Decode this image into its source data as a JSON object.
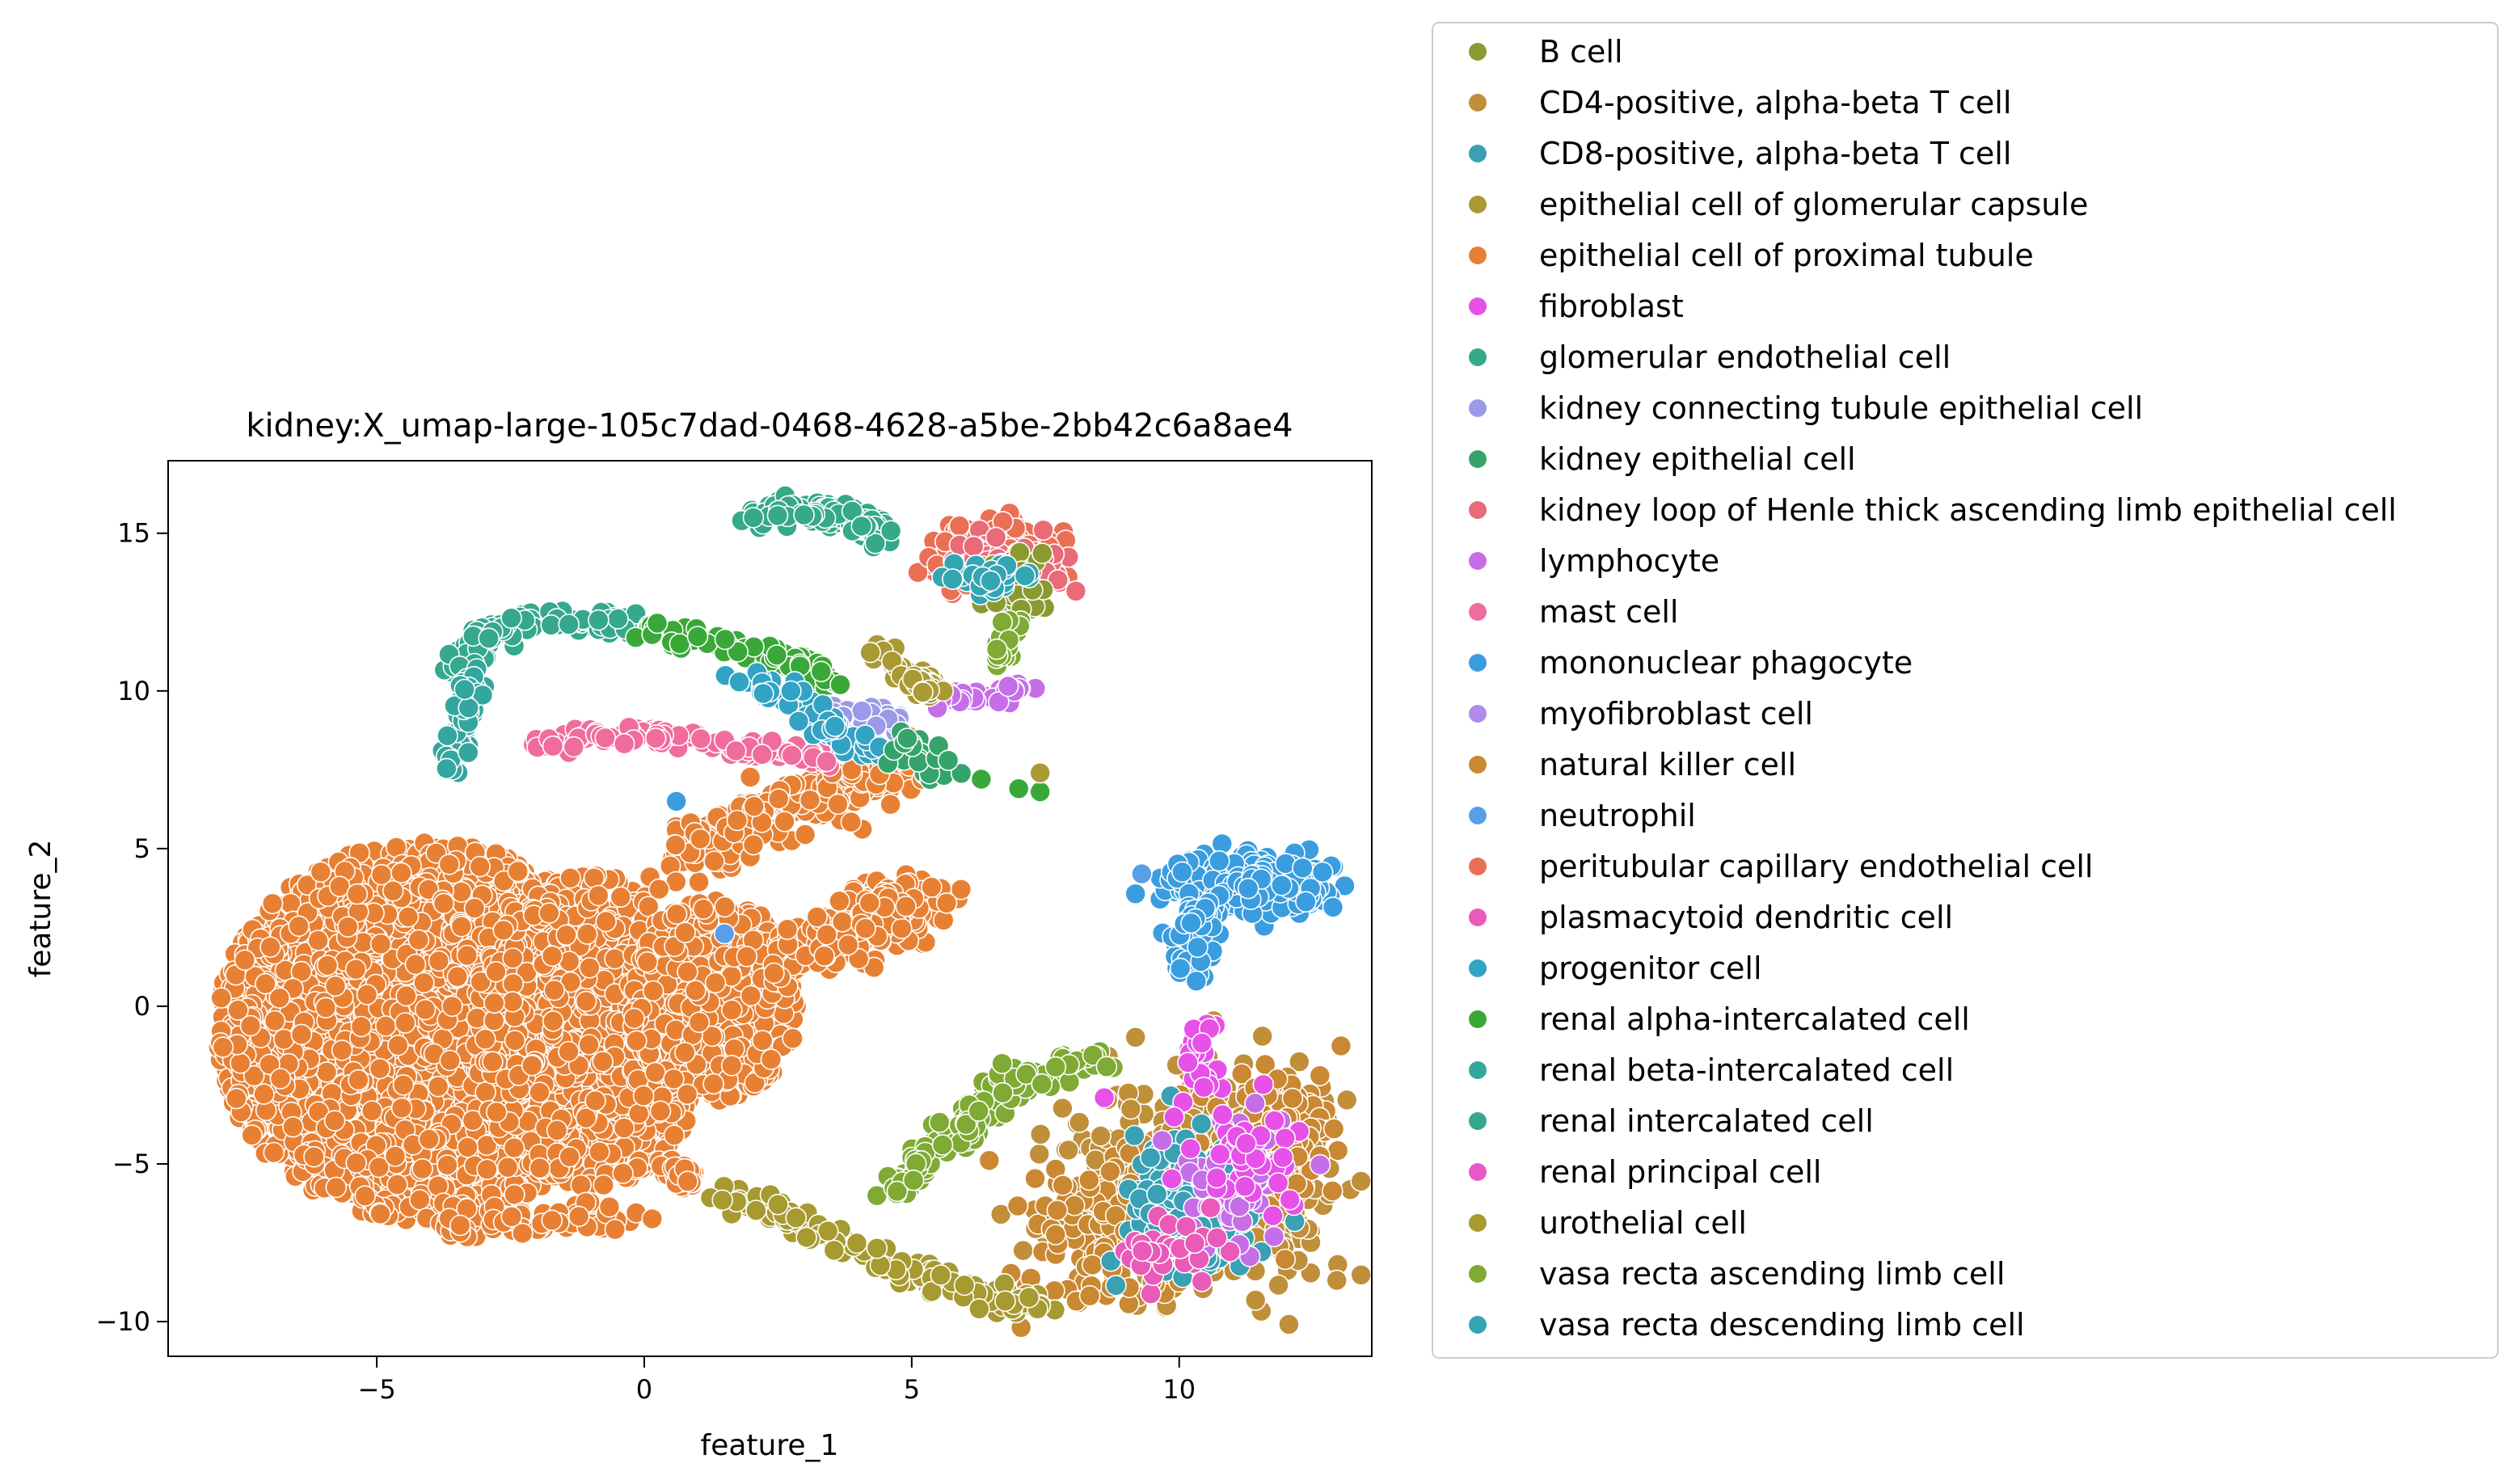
{
  "chart_data": {
    "type": "scatter",
    "title": "kidney:X_umap-large-105c7dad-0468-4628-a5be-2bb42c6a8ae4",
    "xlabel": "feature_1",
    "ylabel": "feature_2",
    "xlim": [
      -8.9,
      13.6
    ],
    "ylim": [
      -11.1,
      17.3
    ],
    "xticks": [
      -5,
      0,
      5,
      10
    ],
    "yticks": [
      -10,
      -5,
      0,
      5,
      10,
      15
    ],
    "xtick_labels": [
      "−5",
      "0",
      "5",
      "10"
    ],
    "ytick_labels": [
      "−10",
      "−5",
      "0",
      "5",
      "10",
      "15"
    ],
    "grid": false,
    "legend_position": "outside-right",
    "series": [
      {
        "name": "B cell",
        "color": "#8a9a31"
      },
      {
        "name": "CD4-positive, alpha-beta T cell",
        "color": "#bf8f3a"
      },
      {
        "name": "CD8-positive, alpha-beta T cell",
        "color": "#3aa0b3"
      },
      {
        "name": "epithelial cell of glomerular capsule",
        "color": "#a99a33"
      },
      {
        "name": "epithelial cell of proximal tubule",
        "color": "#e88033"
      },
      {
        "name": "fibroblast",
        "color": "#e751e8"
      },
      {
        "name": "glomerular endothelial cell",
        "color": "#35a98a"
      },
      {
        "name": "kidney connecting tubule epithelial cell",
        "color": "#9b9ae8"
      },
      {
        "name": "kidney epithelial cell",
        "color": "#34a46b"
      },
      {
        "name": "kidney loop of Henle thick ascending limb epithelial cell",
        "color": "#ea6b78"
      },
      {
        "name": "lymphocyte",
        "color": "#c56ee8"
      },
      {
        "name": "mast cell",
        "color": "#f06c9c"
      },
      {
        "name": "mononuclear phagocyte",
        "color": "#3a9ddf"
      },
      {
        "name": "myofibroblast cell",
        "color": "#b08ce8"
      },
      {
        "name": "natural killer cell",
        "color": "#c98831"
      },
      {
        "name": "neutrophil",
        "color": "#5a9ee8"
      },
      {
        "name": "peritubular capillary endothelial cell",
        "color": "#ea7055"
      },
      {
        "name": "plasmacytoid dendritic cell",
        "color": "#ea5ab8"
      },
      {
        "name": "progenitor cell",
        "color": "#32a3c4"
      },
      {
        "name": "renal alpha-intercalated cell",
        "color": "#39a838"
      },
      {
        "name": "renal beta-intercalated cell",
        "color": "#34a6a0"
      },
      {
        "name": "renal intercalated cell",
        "color": "#35a88e"
      },
      {
        "name": "renal principal cell",
        "color": "#e858c8"
      },
      {
        "name": "urothelial cell",
        "color": "#a69a30"
      },
      {
        "name": "vasa recta ascending limb cell",
        "color": "#7faa33"
      },
      {
        "name": "vasa recta descending limb cell",
        "color": "#33a5b3"
      }
    ]
  }
}
